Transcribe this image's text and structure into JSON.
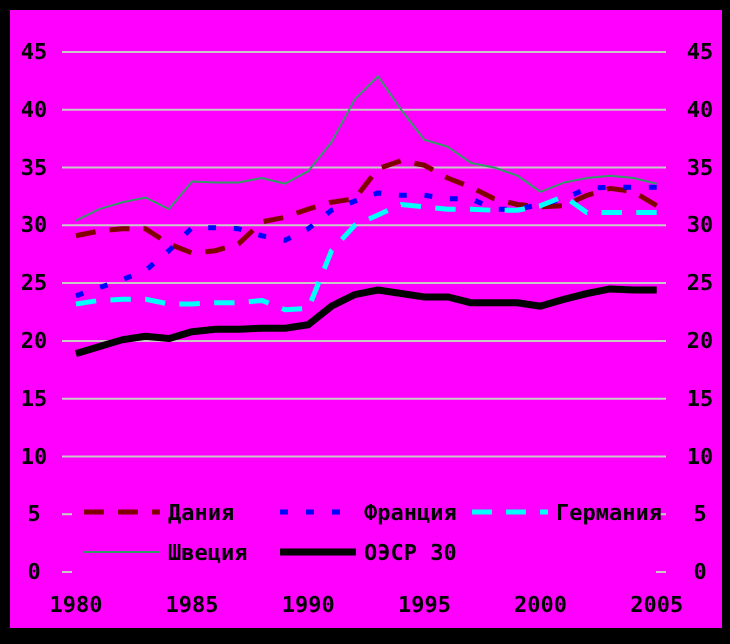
{
  "chart_data": {
    "type": "line",
    "x": [
      1980,
      1981,
      1982,
      1983,
      1984,
      1985,
      1986,
      1987,
      1988,
      1989,
      1990,
      1991,
      1992,
      1993,
      1994,
      1995,
      1996,
      1997,
      1998,
      1999,
      2000,
      2001,
      2002,
      2003,
      2004,
      2005
    ],
    "series": [
      {
        "name": "Дания",
        "color": "#800000",
        "line_style": "dashed",
        "values": [
          29.1,
          29.5,
          29.7,
          29.7,
          28.4,
          27.6,
          27.8,
          28.4,
          30.3,
          30.7,
          31.4,
          32.0,
          32.3,
          34.9,
          35.6,
          35.2,
          34.1,
          33.3,
          32.3,
          31.8,
          31.6,
          31.7,
          32.6,
          33.2,
          32.9,
          31.7
        ]
      },
      {
        "name": "Франция",
        "color": "#0000ff",
        "line_style": "dotted",
        "values": [
          23.9,
          24.6,
          25.3,
          26.1,
          27.8,
          29.8,
          29.8,
          29.7,
          29.1,
          28.7,
          29.7,
          31.3,
          32.1,
          32.8,
          32.6,
          32.6,
          32.3,
          32.3,
          31.4,
          31.4,
          31.8,
          32.3,
          33.2,
          33.3,
          33.3,
          33.3
        ]
      },
      {
        "name": "Германия",
        "color": "#00ffff",
        "line_style": "dashed",
        "values": [
          23.2,
          23.5,
          23.6,
          23.6,
          23.2,
          23.2,
          23.3,
          23.3,
          23.5,
          22.7,
          22.8,
          27.8,
          30.0,
          30.9,
          31.8,
          31.6,
          31.4,
          31.4,
          31.3,
          31.3,
          31.7,
          32.5,
          31.1,
          31.1,
          31.1,
          31.1
        ]
      },
      {
        "name": "Швеция",
        "color": "#339966",
        "line_style": "solid",
        "values": [
          30.4,
          31.4,
          32.0,
          32.4,
          31.4,
          33.8,
          33.7,
          33.7,
          34.1,
          33.6,
          34.7,
          37.2,
          40.9,
          42.9,
          40.0,
          37.4,
          36.8,
          35.4,
          35.0,
          34.3,
          32.9,
          33.7,
          34.1,
          34.3,
          34.1,
          33.6
        ]
      },
      {
        "name": "ОЭСР 30",
        "color": "#000000",
        "line_style": "solid",
        "values": [
          18.9,
          19.5,
          20.1,
          20.4,
          20.2,
          20.8,
          21.0,
          21.0,
          21.1,
          21.1,
          21.4,
          23.0,
          24.0,
          24.4,
          24.1,
          23.8,
          23.8,
          23.3,
          23.3,
          23.3,
          23.0,
          23.6,
          24.1,
          24.5,
          24.4,
          24.4
        ]
      }
    ],
    "xlim": [
      1979.4,
      2005.4
    ],
    "xticks": [
      1980,
      1985,
      1990,
      1995,
      2000,
      2005
    ],
    "ylim": [
      0,
      45
    ],
    "yticks": [
      0,
      5,
      10,
      15,
      20,
      25,
      30,
      35,
      40,
      45
    ],
    "y2lim": [
      0,
      45
    ],
    "y2ticks": [
      0,
      5,
      10,
      15,
      20,
      25,
      30,
      35,
      40,
      45
    ],
    "grid": "y",
    "legend": "bottom",
    "marker": "none"
  }
}
